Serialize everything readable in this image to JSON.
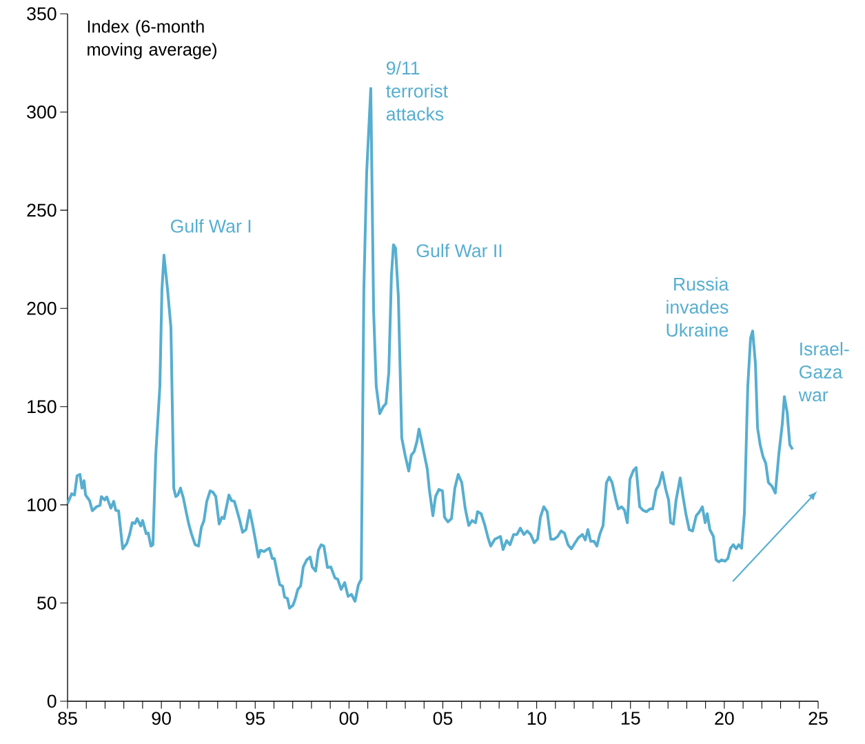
{
  "chart_data": {
    "type": "line",
    "ylabel": "Index (6-month moving average)",
    "color": "#56aed0",
    "x": [
      1985.0,
      1985.22,
      1985.37,
      1985.51,
      1985.66,
      1985.77,
      1985.88,
      1985.96,
      1986.18,
      1986.32,
      1986.54,
      1986.73,
      1986.8,
      1986.98,
      1987.09,
      1987.31,
      1987.46,
      1987.57,
      1987.72,
      1987.94,
      1988.16,
      1988.31,
      1988.45,
      1988.6,
      1988.71,
      1988.9,
      1989.0,
      1989.19,
      1989.3,
      1989.44,
      1989.55,
      1989.7,
      1989.92,
      1990.03,
      1990.14,
      1990.33,
      1990.51,
      1990.66,
      1990.77,
      1990.88,
      1991.02,
      1991.17,
      1991.32,
      1991.46,
      1991.61,
      1991.8,
      1991.98,
      1992.13,
      1992.27,
      1992.42,
      1992.6,
      1992.75,
      1992.9,
      1993.08,
      1993.23,
      1993.34,
      1993.6,
      1993.74,
      1993.89,
      1994.15,
      1994.33,
      1994.51,
      1994.7,
      1994.84,
      1994.99,
      1995.17,
      1995.28,
      1995.47,
      1995.62,
      1995.76,
      1995.91,
      1996.02,
      1996.17,
      1996.31,
      1996.46,
      1996.57,
      1996.72,
      1996.83,
      1997.01,
      1997.12,
      1997.27,
      1997.42,
      1997.56,
      1997.75,
      1997.93,
      1998.04,
      1998.22,
      1998.37,
      1998.52,
      1998.66,
      1998.85,
      1999.03,
      1999.25,
      1999.4,
      1999.58,
      1999.77,
      1999.95,
      2000.13,
      2000.32,
      2000.5,
      2000.65,
      2000.79,
      2000.94,
      2001.16,
      2001.31,
      2001.45,
      2001.64,
      2001.82,
      2001.97,
      2002.12,
      2002.26,
      2002.37,
      2002.48,
      2002.63,
      2002.81,
      2002.99,
      2003.18,
      2003.32,
      2003.47,
      2003.62,
      2003.73,
      2003.87,
      2004.02,
      2004.17,
      2004.28,
      2004.47,
      2004.61,
      2004.79,
      2004.98,
      2005.09,
      2005.27,
      2005.46,
      2005.64,
      2005.82,
      2006.01,
      2006.19,
      2006.38,
      2006.56,
      2006.74,
      2006.85,
      2007.04,
      2007.22,
      2007.41,
      2007.55,
      2007.77,
      2007.92,
      2008.07,
      2008.21,
      2008.4,
      2008.58,
      2008.77,
      2008.95,
      2009.13,
      2009.32,
      2009.5,
      2009.68,
      2009.87,
      2010.05,
      2010.2,
      2010.38,
      2010.56,
      2010.75,
      2010.93,
      2011.12,
      2011.3,
      2011.48,
      2011.67,
      2011.85,
      2012.03,
      2012.22,
      2012.44,
      2012.59,
      2012.73,
      2012.88,
      2013.06,
      2013.21,
      2013.36,
      2013.54,
      2013.72,
      2013.87,
      2014.02,
      2014.2,
      2014.35,
      2014.53,
      2014.68,
      2014.83,
      2014.97,
      2015.16,
      2015.3,
      2015.49,
      2015.67,
      2015.85,
      2016.04,
      2016.18,
      2016.37,
      2016.52,
      2016.7,
      2016.88,
      2017.03,
      2017.14,
      2017.29,
      2017.43,
      2017.65,
      2017.8,
      2017.95,
      2018.13,
      2018.31,
      2018.5,
      2018.68,
      2018.83,
      2018.98,
      2019.09,
      2019.23,
      2019.42,
      2019.56,
      2019.71,
      2019.86,
      2020.04,
      2020.19,
      2020.33,
      2020.48,
      2020.63,
      2020.77,
      2020.92,
      2021.07,
      2021.25,
      2021.4,
      2021.51,
      2021.66,
      2021.77,
      2021.91,
      2022.06,
      2022.21,
      2022.35,
      2022.54,
      2022.72,
      2022.9,
      2023.09,
      2023.2,
      2023.35,
      2023.49,
      2023.64
    ],
    "values": [
      100.7,
      105.6,
      105,
      114.8,
      115.5,
      108.5,
      112.3,
      105,
      102,
      97,
      99,
      99.7,
      104.2,
      102.5,
      104,
      98.3,
      101.8,
      97.2,
      96.9,
      77.6,
      80.4,
      85,
      90.9,
      90.6,
      93,
      89.2,
      92,
      85.3,
      85.6,
      79,
      79.7,
      125.3,
      160.4,
      209.5,
      227.1,
      209.5,
      190.2,
      108.5,
      104.2,
      105,
      108.5,
      103.5,
      96.5,
      90.2,
      85,
      79.7,
      79,
      88.5,
      92,
      101.8,
      107.1,
      106.4,
      104.2,
      90.2,
      93.7,
      93,
      105,
      102.1,
      101.8,
      93,
      86,
      87.4,
      97.2,
      90.9,
      83.2,
      73.4,
      76.9,
      76.2,
      77.2,
      77.9,
      72.7,
      72.7,
      65.6,
      59.3,
      58.6,
      53,
      52.3,
      47.4,
      48.8,
      51.6,
      56.9,
      58.6,
      68.4,
      72,
      73.4,
      68.4,
      66.3,
      76.9,
      79.7,
      79,
      68.1,
      68.4,
      62.8,
      62.1,
      56.9,
      60.4,
      53.4,
      54.4,
      50.9,
      59.3,
      62.1,
      209.5,
      269.2,
      312,
      199,
      160.4,
      146.4,
      149.9,
      151.6,
      167.4,
      216.6,
      232.4,
      230.6,
      206,
      134.1,
      125.3,
      117.2,
      125.3,
      127.1,
      132.3,
      138.6,
      132.3,
      125.3,
      118.3,
      107.8,
      94.4,
      104.2,
      107.8,
      107.1,
      93.7,
      91.3,
      93,
      108.5,
      115.5,
      111.3,
      98.3,
      89.5,
      92,
      90.9,
      96.5,
      95.5,
      90.2,
      83.2,
      79,
      82.5,
      83.2,
      83.9,
      77.2,
      81.8,
      79.7,
      84.9,
      84.9,
      88.1,
      84.9,
      86.7,
      84.9,
      80.7,
      82.5,
      93.7,
      99,
      96.5,
      82.5,
      82.5,
      83.9,
      86.7,
      85.6,
      79.7,
      77.6,
      80.4,
      83.2,
      84.9,
      82.1,
      87.4,
      81.4,
      81.4,
      79,
      84.9,
      89.5,
      111.3,
      114.1,
      111.3,
      103.5,
      97.9,
      99,
      97.2,
      90.9,
      113,
      117.6,
      119,
      99,
      97.2,
      96.5,
      97.9,
      97.9,
      107.8,
      110.2,
      116.5,
      107.8,
      102.5,
      90.9,
      90.2,
      102.5,
      113.7,
      104.2,
      95.5,
      87.4,
      86.7,
      94.4,
      96.5,
      99,
      90.9,
      95.5,
      87.4,
      83.9,
      72,
      70.9,
      72,
      71.3,
      72.7,
      77.9,
      79.7,
      77.6,
      79.7,
      77.9,
      95.5,
      160.4,
      185,
      188.5,
      171.6,
      139.3,
      130.6,
      124.6,
      121.1,
      111.3,
      109.5,
      106,
      125.3,
      141.1,
      155.1,
      147,
      130.6,
      128.2
    ],
    "xlim": [
      1985,
      2025
    ],
    "ylim": [
      0,
      350
    ],
    "xticks": [
      {
        "value": 1985,
        "label": "85"
      },
      {
        "value": 1986,
        "label": null
      },
      {
        "value": 1987,
        "label": null
      },
      {
        "value": 1988,
        "label": null
      },
      {
        "value": 1989,
        "label": null
      },
      {
        "value": 1990,
        "label": "90"
      },
      {
        "value": 1991,
        "label": null
      },
      {
        "value": 1992,
        "label": null
      },
      {
        "value": 1993,
        "label": null
      },
      {
        "value": 1994,
        "label": null
      },
      {
        "value": 1995,
        "label": "95"
      },
      {
        "value": 1996,
        "label": null
      },
      {
        "value": 1997,
        "label": null
      },
      {
        "value": 1998,
        "label": null
      },
      {
        "value": 1999,
        "label": null
      },
      {
        "value": 2000,
        "label": "00"
      },
      {
        "value": 2001,
        "label": null
      },
      {
        "value": 2002,
        "label": null
      },
      {
        "value": 2003,
        "label": null
      },
      {
        "value": 2004,
        "label": null
      },
      {
        "value": 2005,
        "label": "05"
      },
      {
        "value": 2006,
        "label": null
      },
      {
        "value": 2007,
        "label": null
      },
      {
        "value": 2008,
        "label": null
      },
      {
        "value": 2009,
        "label": null
      },
      {
        "value": 2010,
        "label": "10"
      },
      {
        "value": 2011,
        "label": null
      },
      {
        "value": 2012,
        "label": null
      },
      {
        "value": 2013,
        "label": null
      },
      {
        "value": 2014,
        "label": null
      },
      {
        "value": 2015,
        "label": "15"
      },
      {
        "value": 2016,
        "label": null
      },
      {
        "value": 2017,
        "label": null
      },
      {
        "value": 2018,
        "label": null
      },
      {
        "value": 2019,
        "label": null
      },
      {
        "value": 2020,
        "label": "20"
      },
      {
        "value": 2021,
        "label": null
      },
      {
        "value": 2022,
        "label": null
      },
      {
        "value": 2023,
        "label": null
      },
      {
        "value": 2024,
        "label": null
      },
      {
        "value": 2025,
        "label": "25"
      }
    ],
    "yticks": [
      0,
      50,
      100,
      150,
      200,
      250,
      300,
      350
    ],
    "annotations": [
      "Gulf War I",
      "9/11 terrorist attacks",
      "Gulf War II",
      "Russia invades Ukraine",
      "Israel-Gaza war"
    ]
  }
}
